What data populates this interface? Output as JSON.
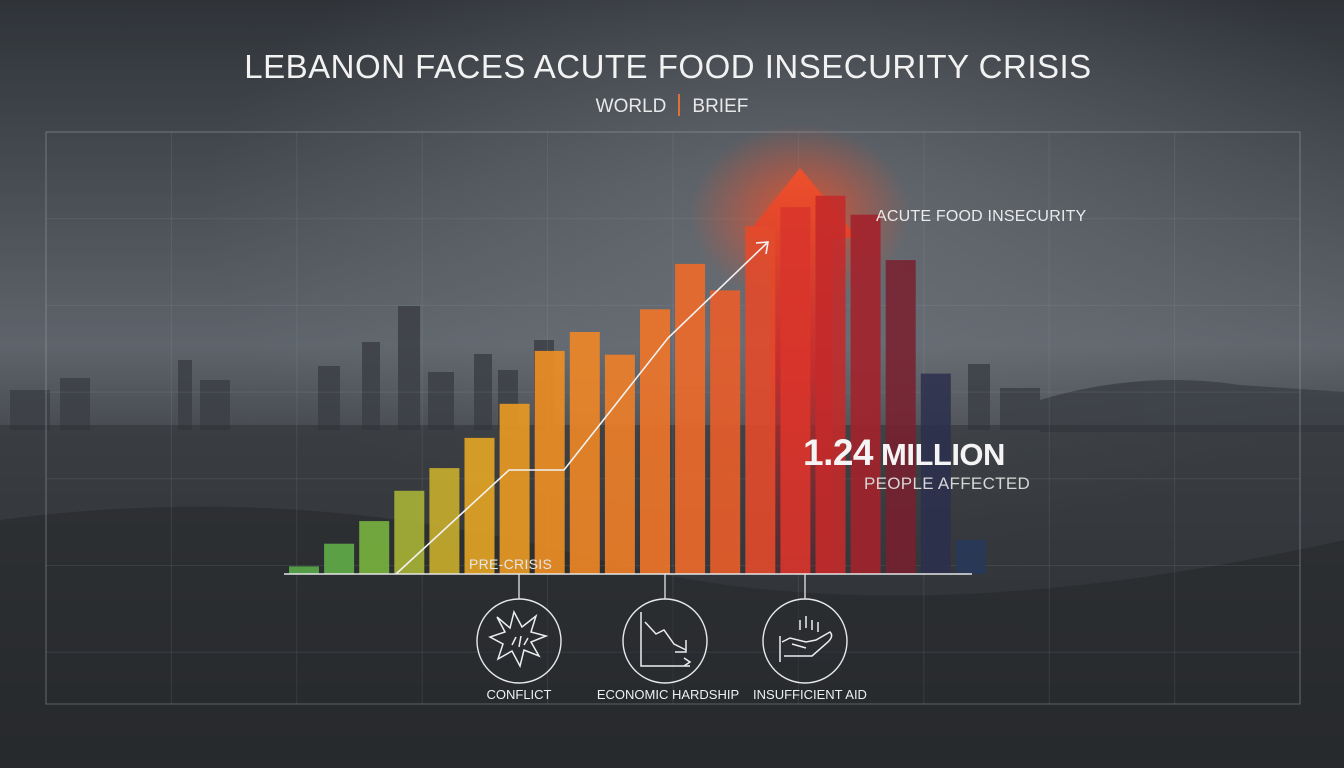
{
  "header": {
    "title": "LEBANON FACES ACUTE FOOD INSECURITY CRISIS",
    "section": "WORLD",
    "tag": "BRIEF",
    "accent_color": "#e0703a"
  },
  "chart_data": {
    "type": "bar",
    "title": "LEBANON FACES ACUTE FOOD INSECURITY CRISIS",
    "xlabel": "",
    "ylabel": "",
    "grid": true,
    "series": [
      {
        "name": "ACUTE FOOD INSECURITY",
        "values": [
          2,
          8,
          14,
          22,
          28,
          36,
          45,
          59,
          64,
          58,
          70,
          82,
          75,
          92,
          97,
          100,
          95,
          83,
          53,
          9
        ],
        "colors": [
          "#5aa84a",
          "#62ad48",
          "#78b43e",
          "#a8b436",
          "#c9ae2c",
          "#e4a624",
          "#eb9a22",
          "#ef8f24",
          "#f08726",
          "#ef7f28",
          "#ef7529",
          "#ee6a2a",
          "#ea5e2a",
          "#e34a2b",
          "#d9352b",
          "#c42a2a",
          "#a3222c",
          "#7a1e2e",
          "#2b2f4e",
          "#27385a"
        ]
      }
    ],
    "ylim": [
      0,
      110
    ],
    "annotations": {
      "highlight_value": "1.24",
      "highlight_unit": "MILLION",
      "highlight_caption": "PEOPLE AFFECTED",
      "baseline_label": "PRE-CRISIS",
      "arrow_label": "ACUTE FOOD INSECURITY"
    }
  },
  "drivers": [
    {
      "label": "CONFLICT",
      "icon": "explosion-icon"
    },
    {
      "label": "ECONOMIC HARDSHIP",
      "icon": "declining-chart-icon"
    },
    {
      "label": "INSUFFICIENT AID",
      "icon": "empty-hand-icon"
    }
  ]
}
